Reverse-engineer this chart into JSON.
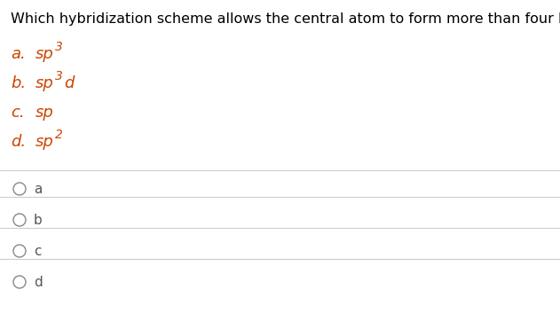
{
  "question": "Which hybridization scheme allows the central atom to form more than four bonds?",
  "options": [
    {
      "label": "a.",
      "text": "sp",
      "superscript": "3",
      "extra": ""
    },
    {
      "label": "b.",
      "text": "sp",
      "superscript": "3",
      "extra": "d"
    },
    {
      "label": "c.",
      "text": "sp",
      "superscript": "",
      "extra": ""
    },
    {
      "label": "d.",
      "text": "sp",
      "superscript": "2",
      "extra": ""
    }
  ],
  "answers": [
    "a",
    "b",
    "c",
    "d"
  ],
  "bg_color": "#ffffff",
  "question_color": "#000000",
  "option_text_color": "#cc4400",
  "answer_label_color": "#555555",
  "line_color": "#cccccc",
  "circle_color": "#888888",
  "question_fontsize": 11.5,
  "option_fontsize": 13,
  "answer_fontsize": 11
}
